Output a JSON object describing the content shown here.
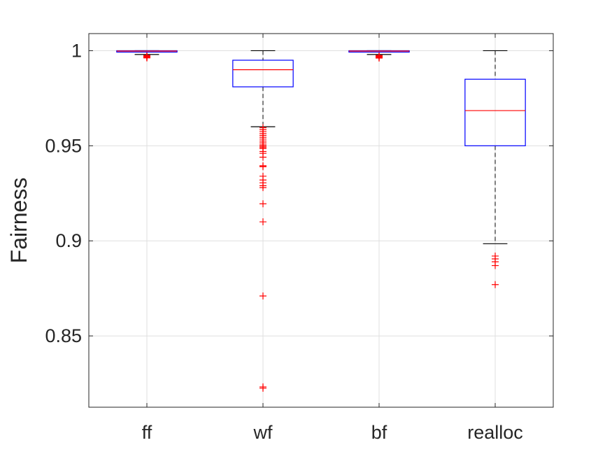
{
  "chart_data": {
    "type": "box",
    "title": "",
    "xlabel": "",
    "ylabel": "Fairness",
    "ylim": [
      0.8125,
      1.009
    ],
    "yticks": [
      0.85,
      0.9,
      0.95,
      1
    ],
    "ytick_labels": [
      "0.85",
      "0.9",
      "0.95",
      "1"
    ],
    "grid": true,
    "categories": [
      "ff",
      "wf",
      "bf",
      "realloc"
    ],
    "boxes": [
      {
        "category": "ff",
        "whisker_low": 0.998,
        "q1": 0.9995,
        "median": 0.9998,
        "q3": 1.0,
        "whisker_high": 1.0,
        "outliers": [
          0.9975,
          0.9972,
          0.997,
          0.9968,
          0.9966,
          0.9964,
          0.9962
        ]
      },
      {
        "category": "wf",
        "whisker_low": 0.96,
        "q1": 0.981,
        "median": 0.99,
        "q3": 0.995,
        "whisker_high": 1.0,
        "outliers": [
          0.9595,
          0.9585,
          0.9575,
          0.9565,
          0.9555,
          0.9545,
          0.9535,
          0.9525,
          0.9515,
          0.9505,
          0.9498,
          0.9492,
          0.9485,
          0.947,
          0.946,
          0.944,
          0.9395,
          0.939,
          0.934,
          0.932,
          0.9305,
          0.929,
          0.928,
          0.9195,
          0.91,
          0.871,
          0.8232,
          0.8225
        ]
      },
      {
        "category": "bf",
        "whisker_low": 0.998,
        "q1": 0.9995,
        "median": 0.9998,
        "q3": 1.0,
        "whisker_high": 1.0,
        "outliers": [
          0.9975,
          0.9972,
          0.997,
          0.9967,
          0.9964,
          0.9961
        ]
      },
      {
        "category": "realloc",
        "whisker_low": 0.8985,
        "q1": 0.95,
        "median": 0.9685,
        "q3": 0.985,
        "whisker_high": 1.0,
        "outliers": [
          0.892,
          0.8905,
          0.889,
          0.887,
          0.877
        ]
      }
    ],
    "colors": {
      "box": "#0000ff",
      "median": "#ff0000",
      "whisker": "#000000",
      "outlier": "#ff0000",
      "grid": "#dfdfdf",
      "axis": "#262626"
    }
  }
}
